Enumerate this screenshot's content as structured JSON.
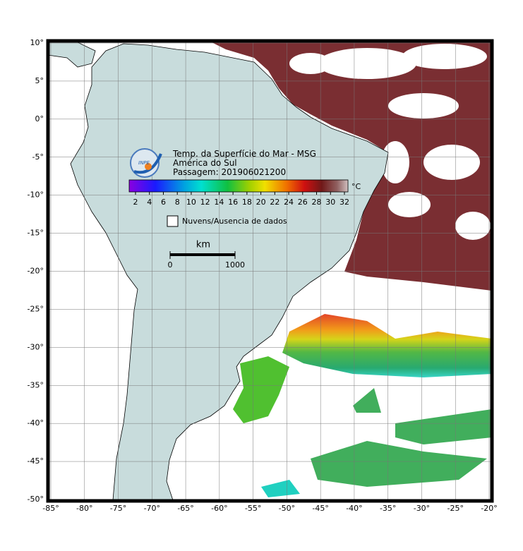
{
  "map": {
    "title_lines": [
      "Temp. da Superfície do Mar - MSG",
      "América do Sul",
      "Passagem: 201906021200"
    ],
    "logo": "INPE",
    "colorbar": {
      "unit": "°C",
      "ticks": [
        2,
        4,
        6,
        8,
        10,
        12,
        14,
        16,
        18,
        20,
        22,
        24,
        26,
        28,
        30,
        32
      ]
    },
    "legend": "Nuvens/Ausencia de dados",
    "scale": {
      "unit": "km",
      "ticks": [
        0,
        1000
      ]
    },
    "lon_ticks": [
      {
        "value": -85,
        "label": "-85°"
      },
      {
        "value": -80,
        "label": "-80°"
      },
      {
        "value": -75,
        "label": "-75°"
      },
      {
        "value": -70,
        "label": "-70°"
      },
      {
        "value": -65,
        "label": "-65°"
      },
      {
        "value": -60,
        "label": "-60°"
      },
      {
        "value": -55,
        "label": "-55°"
      },
      {
        "value": -50,
        "label": "-50°"
      },
      {
        "value": -45,
        "label": "-45°"
      },
      {
        "value": -40,
        "label": "-40°"
      },
      {
        "value": -35,
        "label": "-35°"
      },
      {
        "value": -30,
        "label": "-30°"
      },
      {
        "value": -25,
        "label": "-25°"
      },
      {
        "value": -20,
        "label": "-20°"
      }
    ],
    "lat_ticks": [
      {
        "value": 10,
        "label": "10°"
      },
      {
        "value": 5,
        "label": "5°"
      },
      {
        "value": 0,
        "label": "0°"
      },
      {
        "value": -5,
        "label": "-5°"
      },
      {
        "value": -10,
        "label": "-10°"
      },
      {
        "value": -15,
        "label": "-15°"
      },
      {
        "value": -20,
        "label": "-20°"
      },
      {
        "value": -25,
        "label": "-25°"
      },
      {
        "value": -30,
        "label": "-30°"
      },
      {
        "value": -35,
        "label": "-35°"
      },
      {
        "value": -40,
        "label": "-40°"
      },
      {
        "value": -45,
        "label": "-45°"
      },
      {
        "value": -50,
        "label": "-50°"
      }
    ]
  }
}
